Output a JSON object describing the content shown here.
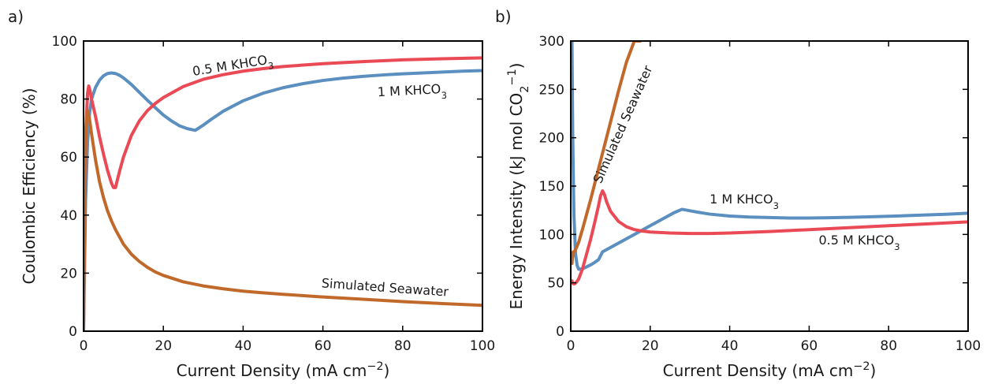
{
  "chart_data": [
    {
      "panel": "a)",
      "type": "line",
      "xlabel": "Current Density (mA cm⁻²)",
      "ylabel": "Coulombic Efficiency (%)",
      "xlim": [
        0,
        100
      ],
      "ylim": [
        0,
        100
      ],
      "xticks": [
        0,
        20,
        40,
        60,
        80,
        100
      ],
      "yticks": [
        0,
        20,
        40,
        60,
        80,
        100
      ],
      "grid": false,
      "legend": "none",
      "series": [
        {
          "name": "1 M KHCO₃",
          "color": "#5b8fc0",
          "x": [
            0,
            0.5,
            1,
            1.5,
            2,
            3,
            4,
            5,
            6,
            7,
            8,
            9,
            10,
            12,
            14,
            16,
            18,
            20,
            22,
            24,
            26,
            28,
            30,
            32,
            35,
            40,
            45,
            50,
            55,
            60,
            65,
            70,
            75,
            80,
            85,
            90,
            95,
            100
          ],
          "y": [
            0,
            45,
            65,
            75,
            80,
            84,
            86.5,
            88,
            88.8,
            89,
            88.8,
            88.2,
            87.3,
            85,
            82.3,
            79.6,
            77,
            74.5,
            72.5,
            70.8,
            69.8,
            69.2,
            71,
            73,
            75.8,
            79.4,
            82,
            83.9,
            85.3,
            86.4,
            87.2,
            87.8,
            88.3,
            88.7,
            89,
            89.3,
            89.6,
            89.8
          ]
        },
        {
          "name": "0.5 M KHCO₃",
          "color": "#e94a55",
          "x": [
            0,
            0.3,
            0.6,
            1,
            1.3,
            1.6,
            2,
            3,
            4,
            5,
            6,
            7,
            7.5,
            8,
            9,
            10,
            12,
            14,
            16,
            18,
            20,
            25,
            30,
            35,
            40,
            45,
            50,
            60,
            70,
            80,
            90,
            100
          ],
          "y": [
            0,
            40,
            70,
            82,
            84.5,
            83,
            80,
            74,
            67,
            61,
            55.5,
            51,
            49.5,
            49.5,
            55,
            60,
            67.5,
            72.5,
            76,
            78.5,
            80.5,
            84.3,
            86.8,
            88.4,
            89.6,
            90.5,
            91.2,
            92.2,
            92.9,
            93.5,
            93.9,
            94.2
          ]
        },
        {
          "name": "Simulated Seawater",
          "color": "#c0692a",
          "x": [
            0,
            0.3,
            0.6,
            1,
            1.5,
            2,
            3,
            4,
            5,
            6,
            7,
            8,
            10,
            12,
            14,
            16,
            18,
            20,
            25,
            30,
            35,
            40,
            45,
            50,
            60,
            70,
            80,
            90,
            100
          ],
          "y": [
            0,
            45,
            70,
            76,
            73,
            68,
            59,
            51.5,
            46,
            41.5,
            38,
            35,
            30,
            26.5,
            24,
            22,
            20.4,
            19.2,
            17,
            15.6,
            14.6,
            13.8,
            13.2,
            12.7,
            11.8,
            11,
            10.2,
            9.5,
            8.9
          ]
        }
      ],
      "annotations": [
        {
          "text": "0.5 M KHCO₃",
          "series": "0.5 M KHCO₃"
        },
        {
          "text": "1 M KHCO₃",
          "series": "1 M KHCO₃"
        },
        {
          "text": "Simulated Seawater",
          "series": "Simulated Seawater"
        }
      ]
    },
    {
      "panel": "b)",
      "type": "line",
      "xlabel": "Current Density (mA cm⁻²)",
      "ylabel": "Energy Intensity (kJ mol CO₂⁻¹)",
      "xlim": [
        0,
        100
      ],
      "ylim": [
        0,
        300
      ],
      "xticks": [
        0,
        20,
        40,
        60,
        80,
        100
      ],
      "yticks": [
        0,
        50,
        100,
        150,
        200,
        250,
        300
      ],
      "grid": false,
      "legend": "none",
      "series": [
        {
          "name": "1 M KHCO₃",
          "color": "#5b8fc0",
          "x": [
            0.3,
            0.5,
            0.8,
            1.2,
            1.6,
            2,
            3,
            4,
            5,
            6,
            7,
            8,
            10,
            12,
            14,
            16,
            18,
            20,
            22,
            24,
            26,
            28,
            30,
            32,
            35,
            40,
            45,
            50,
            55,
            60,
            65,
            70,
            75,
            80,
            85,
            90,
            95,
            100
          ],
          "y": [
            300,
            200,
            120,
            80,
            68,
            64,
            64.5,
            66.5,
            68.5,
            71,
            74,
            82,
            86.5,
            91,
            95.5,
            100,
            104.5,
            109,
            113.5,
            118,
            122.5,
            126,
            124.5,
            123,
            121,
            119,
            118,
            117.5,
            117,
            117,
            117.3,
            117.7,
            118.2,
            118.8,
            119.5,
            120.2,
            121,
            122
          ]
        },
        {
          "name": "0.5 M KHCO₃",
          "color": "#e94a55",
          "x": [
            0.3,
            0.6,
            1,
            1.5,
            2,
            3,
            4,
            5,
            6,
            7,
            7.5,
            8,
            8.5,
            9,
            10,
            12,
            14,
            16,
            18,
            20,
            25,
            30,
            35,
            40,
            50,
            60,
            70,
            80,
            90,
            100
          ],
          "y": [
            52,
            49,
            49,
            51,
            54,
            65,
            80,
            95,
            112,
            130,
            140,
            145,
            141,
            134,
            124,
            113.5,
            108,
            105,
            103.5,
            102.5,
            101.5,
            101,
            101,
            101.5,
            103,
            105,
            107,
            109,
            111,
            113
          ]
        },
        {
          "name": "Simulated Seawater",
          "color": "#c0692a",
          "x": [
            0.3,
            0.6,
            1,
            1.5,
            2,
            3,
            4,
            5,
            6,
            8,
            10,
            12,
            14,
            16,
            17.5
          ],
          "y": [
            70,
            82,
            82.5,
            87,
            92,
            106,
            121,
            136,
            152,
            184,
            216,
            248,
            278,
            300,
            300
          ]
        }
      ],
      "annotations": [
        {
          "text": "Simulated Seawater",
          "series": "Simulated Seawater"
        },
        {
          "text": "1 M KHCO₃",
          "series": "1 M KHCO₃"
        },
        {
          "text": "0.5 M KHCO₃",
          "series": "0.5 M KHCO₃"
        }
      ]
    }
  ]
}
